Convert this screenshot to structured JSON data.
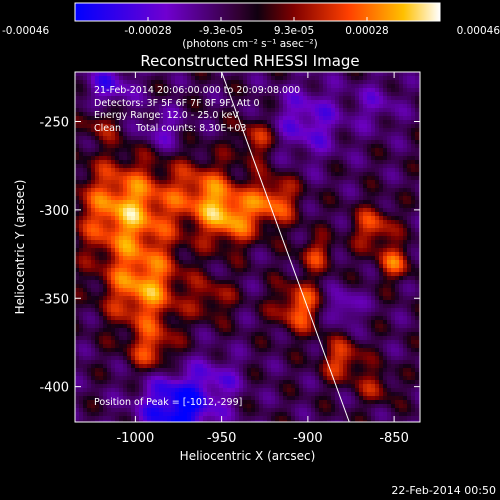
{
  "colorbar": {
    "tick_labels": [
      "-0.00046",
      "-0.00028",
      "-9.3e-05",
      "9.3e-05",
      "0.00028",
      "0.00046"
    ],
    "units": "(photons cm⁻² s⁻¹ asec⁻²)"
  },
  "chart_data": {
    "type": "heatmap",
    "title": "Reconstructed RHESSI Image",
    "xlabel": "Heliocentric X (arcsec)",
    "ylabel": "Heliocentric Y (arcsec)",
    "xlim": [
      -1035,
      -835
    ],
    "ylim": [
      -420,
      -222
    ],
    "x_ticks": [
      -1000,
      -950,
      -900,
      -850
    ],
    "y_ticks": [
      -250,
      -300,
      -350,
      -400
    ],
    "x_tick_labels": [
      "-1000",
      "-950",
      "-900",
      "-850"
    ],
    "y_tick_labels": [
      "-250",
      "-300",
      "-350",
      "-400"
    ],
    "vmin": -0.00046,
    "vmax": 0.00046,
    "limb_line": [
      [
        -950,
        -222
      ],
      [
        -876,
        -420
      ]
    ],
    "colors": {
      "negative_low": "#0000ff",
      "negative_mid": "#8000c0",
      "zero": "#300030",
      "positive_mid": "#ff4000",
      "positive_high": "#ffff80"
    }
  },
  "annotations": {
    "time_range": "21-Feb-2014 20:06:00.000 to 20:09:08.000",
    "detectors": "Detectors: 3F 5F 6F 7F 8F 9F, Att 0",
    "energy": "Energy Range: 12.0 - 25.0 keV",
    "clean": "Clean     Total counts: 8.30E+03",
    "peak": "Position of Peak = [-1012,-299]"
  },
  "footer_date": "22-Feb-2014 00:50"
}
